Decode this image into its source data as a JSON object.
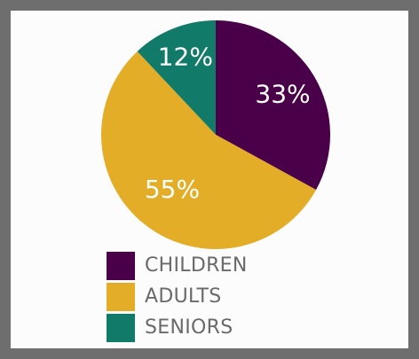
{
  "colors": {
    "frame": "#6e6e6e",
    "background": "#fcfcfc",
    "children": "#4a0048",
    "adults": "#e3ad28",
    "seniors": "#127a69",
    "legend_text": "#6a6a6a"
  },
  "chart_data": {
    "type": "pie",
    "title": "",
    "categories": [
      "CHILDREN",
      "ADULTS",
      "SENIORS"
    ],
    "values": [
      33,
      55,
      12
    ],
    "value_labels": [
      "33%",
      "55%",
      "12%"
    ],
    "colors": [
      "#4a0048",
      "#e3ad28",
      "#127a69"
    ],
    "start_angle": "top (12 o'clock), clockwise",
    "legend_position": "bottom"
  },
  "legend": {
    "items": [
      {
        "label": "CHILDREN",
        "color": "#4a0048"
      },
      {
        "label": "ADULTS",
        "color": "#e3ad28"
      },
      {
        "label": "SENIORS",
        "color": "#127a69"
      }
    ]
  }
}
